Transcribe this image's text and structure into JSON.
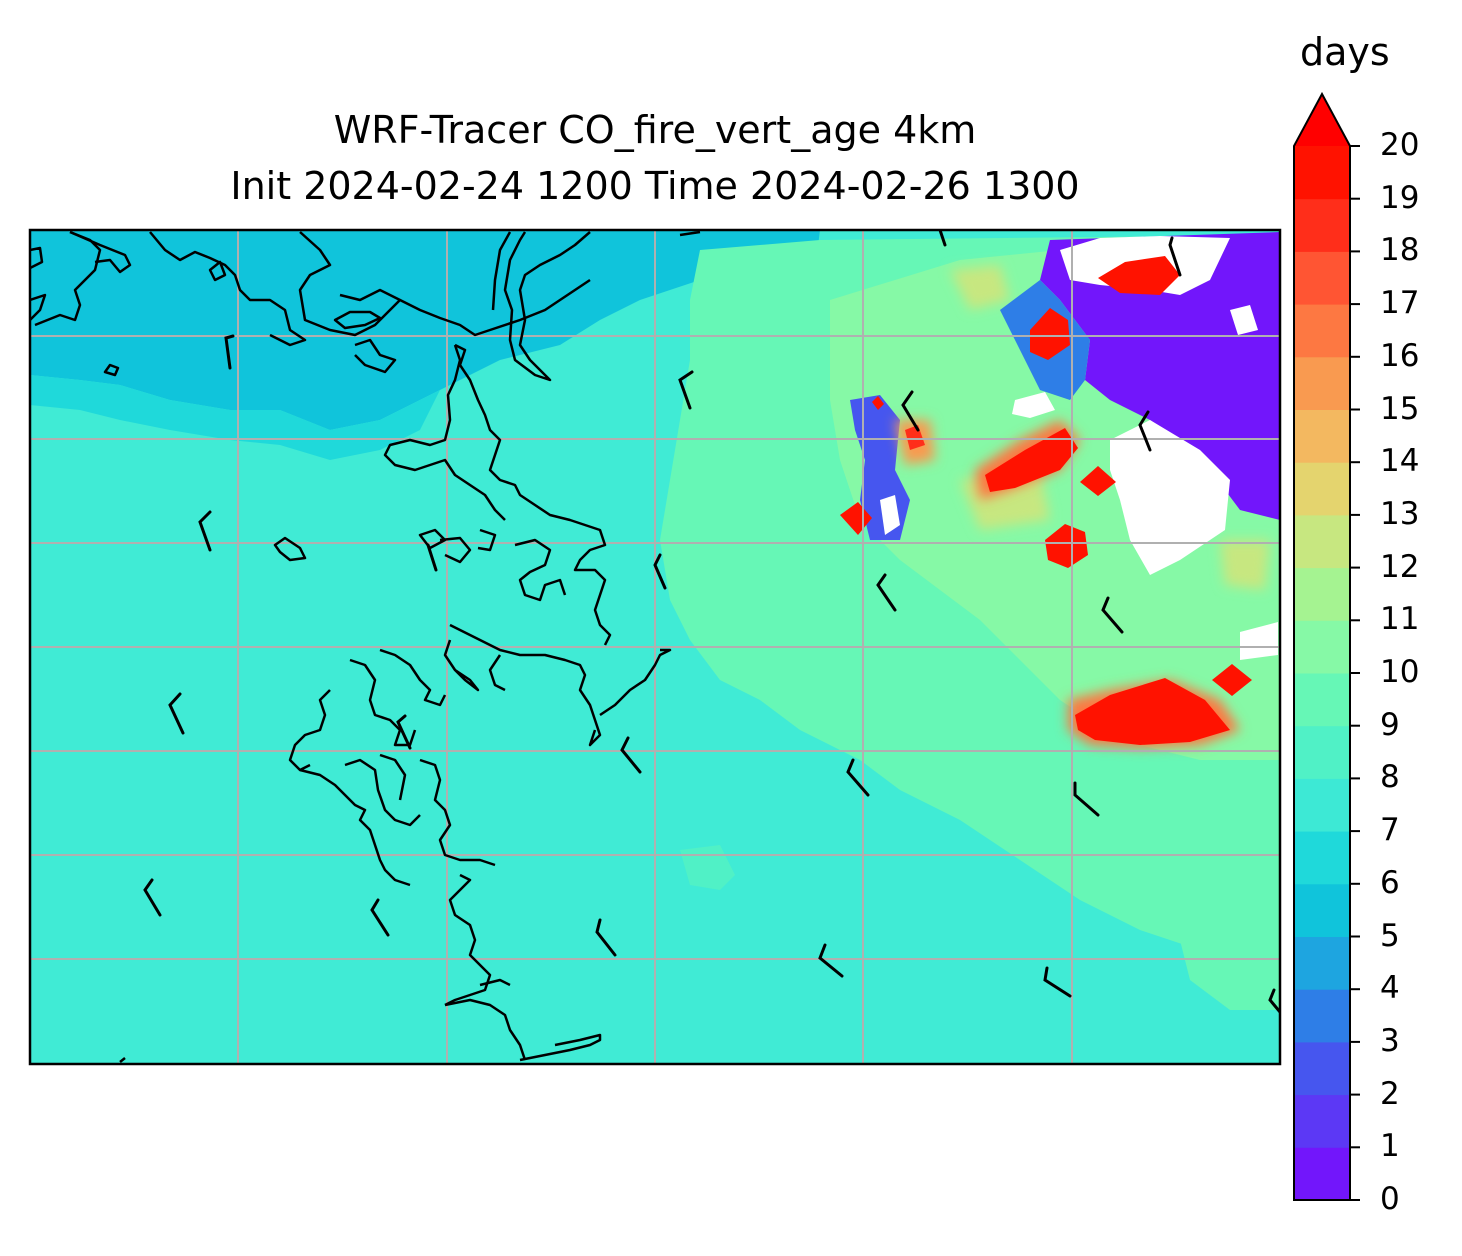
{
  "title_line1": "WRF-Tracer CO_fire_vert_age 4km",
  "title_line2": "Init 2024-02-24 1200 Time 2024-02-26 1300",
  "colorbar": {
    "label": "days",
    "ticks": [
      "0",
      "1",
      "2",
      "3",
      "4",
      "5",
      "6",
      "7",
      "8",
      "9",
      "10",
      "11",
      "12",
      "13",
      "14",
      "15",
      "16",
      "17",
      "18",
      "19",
      "20"
    ],
    "extend": "max",
    "colors": [
      "#7216fb",
      "#5c38f5",
      "#4656ef",
      "#2e7ee7",
      "#1ea5e0",
      "#10c4db",
      "#1fd9da",
      "#3de9d5",
      "#50f1c6",
      "#66f7b6",
      "#86f9a6",
      "#a5f391",
      "#c7e780",
      "#e4d46e",
      "#f3b860",
      "#f99a50",
      "#fd7842",
      "#ff5533",
      "#ff2e1a",
      "#ff1200",
      "#ff0000"
    ]
  },
  "map": {
    "background_color": "#40ebd5",
    "coastline_color": "#000000",
    "gridline_color": "#b0b0b0",
    "field_features": [
      "cyan (5-6 days) band along north and northwest edge",
      "light green (9-11 days) over eastern half",
      "red (19-20 days) fire plumes in northeast and east",
      "purple/blue (0-3 days) and white patches in far northeast"
    ]
  }
}
